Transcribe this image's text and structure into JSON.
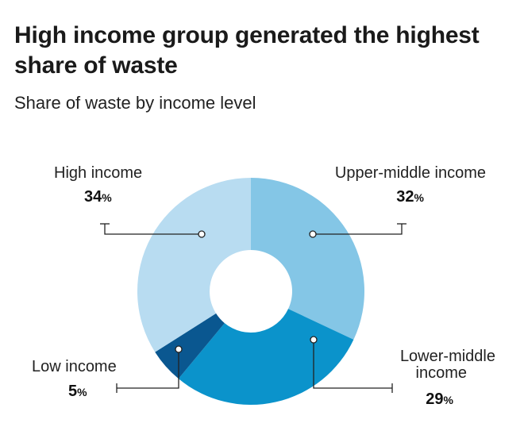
{
  "title": "High income group generated the highest share of waste",
  "subtitle": "Share of waste by income level",
  "chart_data": {
    "type": "pie",
    "title": "High income group generated the highest share of waste",
    "subtitle": "Share of waste by income level",
    "unit": "%",
    "slices": [
      {
        "name": "Upper-middle income",
        "value": 32,
        "color": "#84c6e6"
      },
      {
        "name": "Lower-middle income",
        "value": 29,
        "color": "#0b93cb"
      },
      {
        "name": "Low income",
        "value": 5,
        "color": "#0a5790"
      },
      {
        "name": "High income",
        "value": 34,
        "color": "#b8dcf1"
      }
    ]
  }
}
